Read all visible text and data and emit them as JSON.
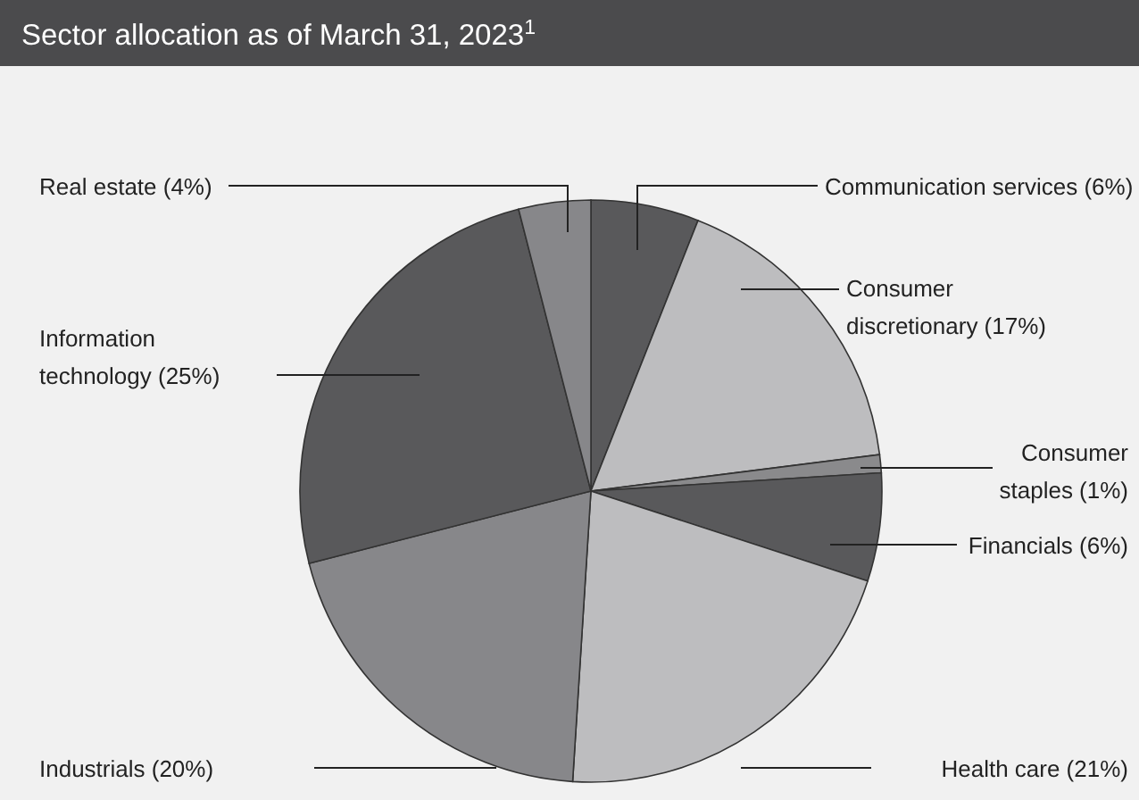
{
  "chart_data": {
    "type": "pie",
    "title": "Sector allocation as of March 31, 2023$^{1}$",
    "categories": [
      "Communication services (6%)",
      "Consumer discretionary (17%)",
      "Consumer staples (1%)",
      "Financials (6%)",
      "Health care (21%)",
      "Industrials (20%)",
      "Information technology (25%)",
      "Real estate (4%)"
    ],
    "values": [
      6,
      17,
      1,
      6,
      21,
      20,
      25,
      4
    ],
    "colors": [
      "#59595b",
      "#bdbdbf",
      "#8a8a8c",
      "#59595b",
      "#bdbdbf",
      "#87878a",
      "#59595b",
      "#87878a"
    ]
  }
}
